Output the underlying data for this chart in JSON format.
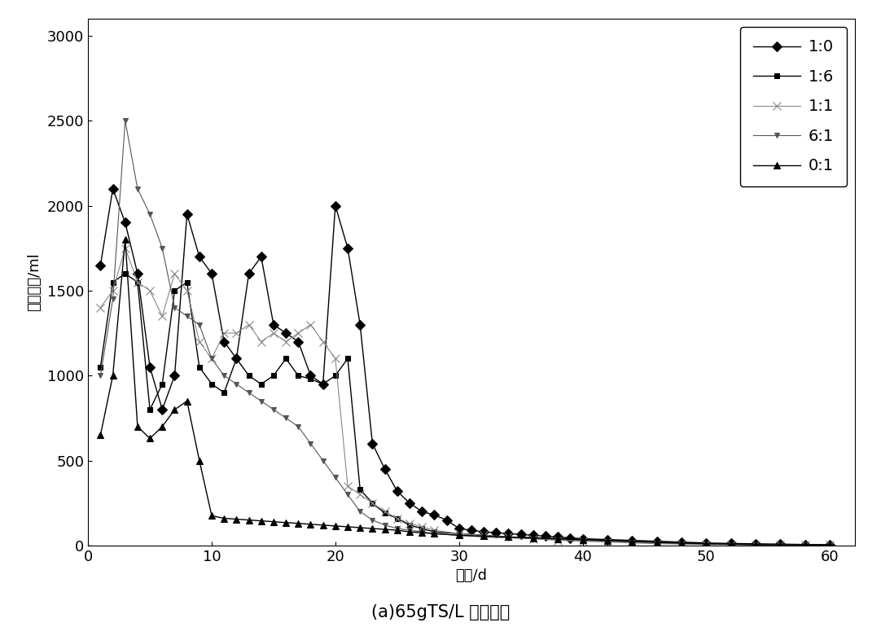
{
  "title": "(a)65gTS/L 日产气量",
  "xlabel": "天数/d",
  "ylabel": "日产气量/ml",
  "xlim": [
    0,
    62
  ],
  "ylim": [
    0,
    3100
  ],
  "xticks": [
    0,
    10,
    20,
    30,
    40,
    50,
    60
  ],
  "yticks": [
    0,
    500,
    1000,
    1500,
    2000,
    2500,
    3000
  ],
  "series": [
    {
      "label": "1:0",
      "x": [
        1,
        2,
        3,
        4,
        5,
        6,
        7,
        8,
        9,
        10,
        11,
        12,
        13,
        14,
        15,
        16,
        17,
        18,
        19,
        20,
        21,
        22,
        23,
        24,
        25,
        26,
        27,
        28,
        29,
        30,
        31,
        32,
        33,
        34,
        35,
        36,
        37,
        38,
        39,
        40,
        42,
        44,
        46,
        48,
        50,
        52,
        54,
        56,
        58,
        60
      ],
      "y": [
        1650,
        2100,
        1900,
        1600,
        1050,
        800,
        1000,
        1950,
        1700,
        1600,
        1200,
        1100,
        1600,
        1700,
        1300,
        1250,
        1200,
        1000,
        950,
        2000,
        1750,
        1300,
        600,
        450,
        320,
        250,
        200,
        180,
        150,
        100,
        90,
        80,
        75,
        70,
        65,
        60,
        55,
        50,
        45,
        40,
        35,
        30,
        25,
        20,
        15,
        12,
        10,
        8,
        6,
        5
      ]
    },
    {
      "label": "1:6",
      "x": [
        1,
        2,
        3,
        4,
        5,
        6,
        7,
        8,
        9,
        10,
        11,
        12,
        13,
        14,
        15,
        16,
        17,
        18,
        19,
        20,
        21,
        22,
        23,
        24,
        25,
        26,
        27,
        28,
        30,
        32,
        34,
        36,
        38,
        40,
        42,
        44,
        46,
        48,
        50,
        52,
        54,
        56,
        58,
        60
      ],
      "y": [
        1050,
        1550,
        1600,
        1550,
        800,
        950,
        1500,
        1550,
        1050,
        950,
        900,
        1100,
        1000,
        950,
        1000,
        1100,
        1000,
        980,
        950,
        1000,
        1100,
        330,
        250,
        190,
        160,
        120,
        100,
        80,
        70,
        60,
        50,
        45,
        40,
        35,
        30,
        25,
        20,
        15,
        10,
        8,
        6,
        5,
        4,
        3
      ]
    },
    {
      "label": "1:1",
      "x": [
        1,
        2,
        3,
        4,
        5,
        6,
        7,
        8,
        9,
        10,
        11,
        12,
        13,
        14,
        15,
        16,
        17,
        18,
        19,
        20,
        21,
        22,
        23,
        24,
        25,
        26,
        27,
        28,
        30,
        32,
        34,
        36,
        38,
        40,
        42,
        44,
        46,
        48,
        50,
        52,
        54,
        56,
        58,
        60
      ],
      "y": [
        1400,
        1500,
        1750,
        1550,
        1500,
        1350,
        1600,
        1500,
        1200,
        1100,
        1250,
        1250,
        1300,
        1200,
        1250,
        1200,
        1250,
        1300,
        1200,
        1100,
        350,
        300,
        250,
        200,
        160,
        130,
        110,
        90,
        70,
        60,
        50,
        40,
        30,
        25,
        20,
        15,
        10,
        8,
        6,
        5,
        4,
        3,
        2,
        2
      ]
    },
    {
      "label": "6:1",
      "x": [
        1,
        2,
        3,
        4,
        5,
        6,
        7,
        8,
        9,
        10,
        11,
        12,
        13,
        14,
        15,
        16,
        17,
        18,
        19,
        20,
        21,
        22,
        23,
        24,
        25,
        26,
        27,
        28,
        30,
        32,
        34,
        36,
        38,
        40,
        42,
        44,
        46,
        48,
        50,
        52,
        54,
        56,
        58,
        60
      ],
      "y": [
        1000,
        1450,
        2500,
        2100,
        1950,
        1750,
        1400,
        1350,
        1300,
        1100,
        1000,
        950,
        900,
        850,
        800,
        750,
        700,
        600,
        500,
        400,
        300,
        200,
        150,
        120,
        100,
        90,
        80,
        70,
        60,
        50,
        45,
        40,
        35,
        30,
        25,
        20,
        15,
        10,
        8,
        6,
        5,
        4,
        3,
        2
      ]
    },
    {
      "label": "0:1",
      "x": [
        1,
        2,
        3,
        4,
        5,
        6,
        7,
        8,
        9,
        10,
        11,
        12,
        13,
        14,
        15,
        16,
        17,
        18,
        19,
        20,
        21,
        22,
        23,
        24,
        25,
        26,
        27,
        28,
        30,
        32,
        34,
        36,
        38,
        40,
        42,
        44,
        46,
        48,
        50,
        52,
        54,
        56,
        58,
        60
      ],
      "y": [
        650,
        1000,
        1800,
        700,
        630,
        700,
        800,
        850,
        500,
        175,
        160,
        155,
        150,
        145,
        140,
        135,
        130,
        125,
        120,
        115,
        110,
        105,
        100,
        95,
        90,
        80,
        75,
        70,
        60,
        55,
        50,
        45,
        40,
        35,
        30,
        25,
        20,
        15,
        10,
        8,
        6,
        5,
        4,
        3
      ]
    }
  ],
  "markers": [
    "D",
    "s",
    "x",
    "v",
    "^"
  ],
  "colors": [
    "#000000",
    "#000000",
    "#888888",
    "#555555",
    "#000000"
  ],
  "linewidths": [
    1.0,
    1.0,
    0.8,
    0.8,
    1.0
  ],
  "markersizes": [
    6,
    5,
    7,
    5,
    6
  ],
  "legend_fontsize": 14,
  "tick_fontsize": 13,
  "axis_label_fontsize": 13,
  "title_fontsize": 15
}
